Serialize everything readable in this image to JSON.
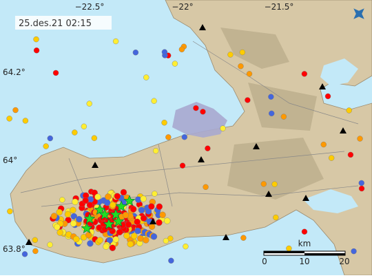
{
  "timestamp": "25.des.21  02:15",
  "longitude_labels": [
    "−22.5°",
    "−22°",
    "−21.5°"
  ],
  "latitude_labels": [
    "64.2°",
    "64°",
    "63.8°"
  ],
  "scale_bar": {
    "unit": "km",
    "labels": [
      "0",
      "10",
      "20"
    ]
  }
}
